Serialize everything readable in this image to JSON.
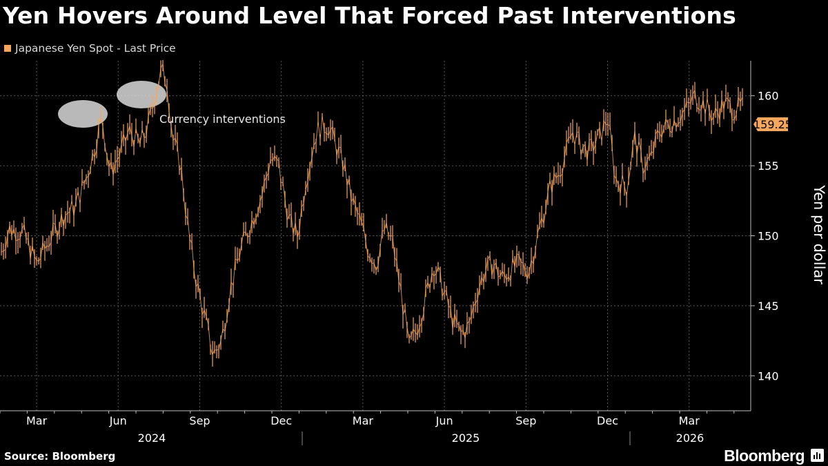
{
  "title": "Yen Hovers Around Level That Forced Past Interventions",
  "legend_label": "Japanese Yen Spot - Last Price",
  "source": "Source: Bloomberg",
  "brand": "Bloomberg",
  "colors": {
    "series": "#f7a75c",
    "badge": "#f7a75c",
    "background": "#000000",
    "grid": "#5a5a5a"
  },
  "chart_data": {
    "type": "line",
    "title": "Yen Hovers Around Level That Forced Past Interventions",
    "ylabel": "Yen per dollar",
    "xlabel": "",
    "ylim": [
      137.5,
      162.5
    ],
    "yticks": [
      "160",
      "155",
      "150",
      "145",
      "140"
    ],
    "ytick_values": [
      160,
      155,
      150,
      145,
      140
    ],
    "month_ticks": [
      "Mar",
      "Jun",
      "Sep",
      "Dec",
      "Mar",
      "Jun",
      "Sep",
      "Dec",
      "Mar"
    ],
    "year_labels": [
      "2024",
      "2025",
      "2026"
    ],
    "last_value": "159.25",
    "annotation": "Currency interventions",
    "grid": true,
    "series": [
      {
        "name": "Japanese Yen Spot - Last Price",
        "x_months": [
          0.0,
          0.5,
          1.0,
          1.5,
          2.0,
          2.5,
          2.9,
          3.3,
          3.6,
          3.9,
          4.2,
          4.6,
          4.9,
          5.3,
          5.6,
          5.9,
          6.1,
          6.3,
          6.5,
          6.8,
          7.1,
          7.4,
          7.7,
          8.0,
          8.3,
          8.6,
          9.0,
          9.4,
          9.8,
          10.1,
          10.4,
          10.8,
          11.1,
          11.4,
          11.8,
          12.2,
          12.5,
          12.8,
          13.1,
          13.4,
          13.7,
          14.0,
          14.3,
          14.6,
          14.9,
          15.2,
          15.5,
          15.8,
          16.1,
          16.4,
          16.8,
          17.1,
          17.4,
          17.7,
          18.0,
          18.3,
          18.6,
          18.9,
          19.2,
          19.6,
          20.0,
          20.4,
          20.7,
          21.0,
          21.2,
          21.5,
          21.8,
          22.2,
          22.5,
          22.8,
          23.2,
          23.5,
          23.8,
          24.1,
          24.4,
          24.8,
          25.1,
          25.4,
          25.7,
          26.0,
          26.4,
          26.8,
          27.1,
          27.5
        ],
        "values": [
          147.8,
          150.5,
          150.2,
          148.0,
          149.8,
          151.5,
          152.0,
          154.0,
          156.0,
          158.5,
          154.5,
          156.0,
          157.5,
          156.5,
          157.8,
          160.5,
          161.8,
          161.0,
          157.0,
          155.0,
          150.0,
          146.5,
          144.0,
          141.5,
          142.5,
          146.0,
          149.0,
          151.0,
          153.0,
          155.5,
          155.0,
          151.0,
          150.0,
          154.0,
          157.5,
          158.0,
          156.5,
          155.0,
          152.5,
          151.0,
          149.0,
          148.0,
          150.5,
          149.5,
          146.0,
          142.0,
          143.5,
          145.5,
          148.0,
          146.5,
          144.0,
          143.0,
          143.5,
          146.0,
          147.5,
          148.0,
          147.0,
          147.5,
          148.0,
          147.5,
          150.5,
          153.5,
          154.5,
          156.0,
          157.5,
          156.5,
          156.0,
          157.0,
          158.5,
          154.0,
          153.5,
          157.0,
          155.0,
          155.5,
          157.5,
          158.0,
          158.5,
          159.0,
          160.0,
          159.5,
          158.5,
          159.5,
          159.0,
          159.25
        ]
      }
    ]
  }
}
